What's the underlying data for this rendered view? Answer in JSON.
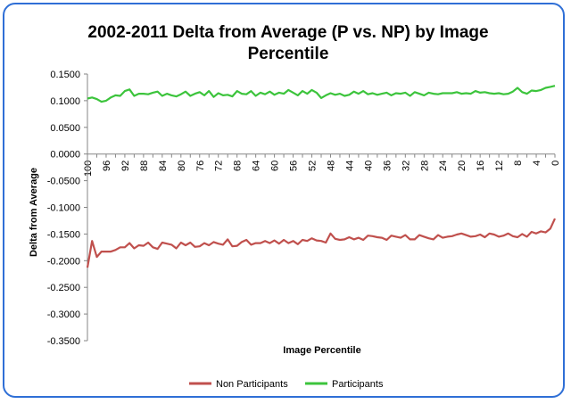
{
  "chart_data": {
    "type": "line",
    "title_lines": [
      "2002-2011 Delta from Average (P vs. NP) by Image",
      "Percentile"
    ],
    "xlabel": "Image Percentile",
    "ylabel": "Delta from Average",
    "ylim": [
      -0.35,
      0.15
    ],
    "y_ticks": [
      "0.1500",
      "0.1000",
      "0.0500",
      "0.0000",
      "-0.0500",
      "-0.1000",
      "-0.1500",
      "-0.2000",
      "-0.2500",
      "-0.3000",
      "-0.3500"
    ],
    "x_ticks": [
      "100",
      "96",
      "92",
      "88",
      "84",
      "80",
      "76",
      "72",
      "68",
      "64",
      "60",
      "56",
      "52",
      "48",
      "44",
      "40",
      "36",
      "32",
      "28",
      "24",
      "20",
      "16",
      "12",
      "8",
      "4",
      "0"
    ],
    "x_reversed": true,
    "grid": false,
    "legend_position": "bottom",
    "series": [
      {
        "name": "Non Participants",
        "color": "#c0504d",
        "x": [
          100,
          99,
          98,
          97,
          96,
          95,
          94,
          93,
          92,
          91,
          90,
          89,
          88,
          87,
          86,
          85,
          84,
          83,
          82,
          81,
          80,
          79,
          78,
          77,
          76,
          75,
          74,
          73,
          72,
          71,
          70,
          69,
          68,
          67,
          66,
          65,
          64,
          63,
          62,
          61,
          60,
          59,
          58,
          57,
          56,
          55,
          54,
          53,
          52,
          51,
          50,
          49,
          48,
          47,
          46,
          45,
          44,
          43,
          42,
          41,
          40,
          39,
          38,
          37,
          36,
          35,
          34,
          33,
          32,
          31,
          30,
          29,
          28,
          27,
          26,
          25,
          24,
          23,
          22,
          21,
          20,
          19,
          18,
          17,
          16,
          15,
          14,
          13,
          12,
          11,
          10,
          9,
          8,
          7,
          6,
          5,
          4,
          3,
          2,
          1,
          0
        ],
        "values": [
          -0.213,
          -0.163,
          -0.193,
          -0.183,
          -0.183,
          -0.183,
          -0.18,
          -0.175,
          -0.175,
          -0.167,
          -0.177,
          -0.171,
          -0.172,
          -0.166,
          -0.175,
          -0.178,
          -0.166,
          -0.168,
          -0.17,
          -0.177,
          -0.166,
          -0.171,
          -0.166,
          -0.174,
          -0.173,
          -0.167,
          -0.171,
          -0.165,
          -0.168,
          -0.17,
          -0.16,
          -0.173,
          -0.172,
          -0.165,
          -0.161,
          -0.17,
          -0.167,
          -0.167,
          -0.163,
          -0.167,
          -0.162,
          -0.168,
          -0.161,
          -0.167,
          -0.163,
          -0.169,
          -0.161,
          -0.163,
          -0.158,
          -0.162,
          -0.163,
          -0.166,
          -0.149,
          -0.159,
          -0.161,
          -0.16,
          -0.156,
          -0.16,
          -0.157,
          -0.161,
          -0.153,
          -0.154,
          -0.156,
          -0.157,
          -0.161,
          -0.153,
          -0.155,
          -0.157,
          -0.152,
          -0.16,
          -0.16,
          -0.152,
          -0.155,
          -0.158,
          -0.16,
          -0.152,
          -0.157,
          -0.155,
          -0.154,
          -0.151,
          -0.149,
          -0.152,
          -0.155,
          -0.154,
          -0.151,
          -0.156,
          -0.149,
          -0.151,
          -0.155,
          -0.153,
          -0.149,
          -0.154,
          -0.156,
          -0.15,
          -0.155,
          -0.146,
          -0.149,
          -0.145,
          -0.147,
          -0.14,
          -0.121
        ]
      },
      {
        "name": "Participants",
        "color": "#3cc43c",
        "x": [
          100,
          99,
          98,
          97,
          96,
          95,
          94,
          93,
          92,
          91,
          90,
          89,
          88,
          87,
          86,
          85,
          84,
          83,
          82,
          81,
          80,
          79,
          78,
          77,
          76,
          75,
          74,
          73,
          72,
          71,
          70,
          69,
          68,
          67,
          66,
          65,
          64,
          63,
          62,
          61,
          60,
          59,
          58,
          57,
          56,
          55,
          54,
          53,
          52,
          51,
          50,
          49,
          48,
          47,
          46,
          45,
          44,
          43,
          42,
          41,
          40,
          39,
          38,
          37,
          36,
          35,
          34,
          33,
          32,
          31,
          30,
          29,
          28,
          27,
          26,
          25,
          24,
          23,
          22,
          21,
          20,
          19,
          18,
          17,
          16,
          15,
          14,
          13,
          12,
          11,
          10,
          9,
          8,
          7,
          6,
          5,
          4,
          3,
          2,
          1,
          0
        ],
        "values": [
          0.104,
          0.106,
          0.103,
          0.098,
          0.1,
          0.106,
          0.11,
          0.109,
          0.118,
          0.121,
          0.109,
          0.113,
          0.113,
          0.112,
          0.115,
          0.117,
          0.109,
          0.113,
          0.11,
          0.108,
          0.112,
          0.117,
          0.109,
          0.113,
          0.116,
          0.11,
          0.118,
          0.107,
          0.114,
          0.11,
          0.111,
          0.108,
          0.118,
          0.113,
          0.112,
          0.118,
          0.109,
          0.115,
          0.112,
          0.117,
          0.111,
          0.115,
          0.113,
          0.12,
          0.115,
          0.11,
          0.118,
          0.113,
          0.12,
          0.115,
          0.105,
          0.11,
          0.114,
          0.111,
          0.113,
          0.109,
          0.111,
          0.117,
          0.113,
          0.118,
          0.112,
          0.114,
          0.111,
          0.113,
          0.115,
          0.11,
          0.114,
          0.113,
          0.115,
          0.109,
          0.116,
          0.113,
          0.11,
          0.115,
          0.113,
          0.112,
          0.114,
          0.114,
          0.114,
          0.116,
          0.113,
          0.114,
          0.113,
          0.118,
          0.115,
          0.116,
          0.114,
          0.113,
          0.114,
          0.112,
          0.113,
          0.117,
          0.124,
          0.116,
          0.113,
          0.119,
          0.118,
          0.12,
          0.124,
          0.126,
          0.128
        ]
      }
    ]
  }
}
